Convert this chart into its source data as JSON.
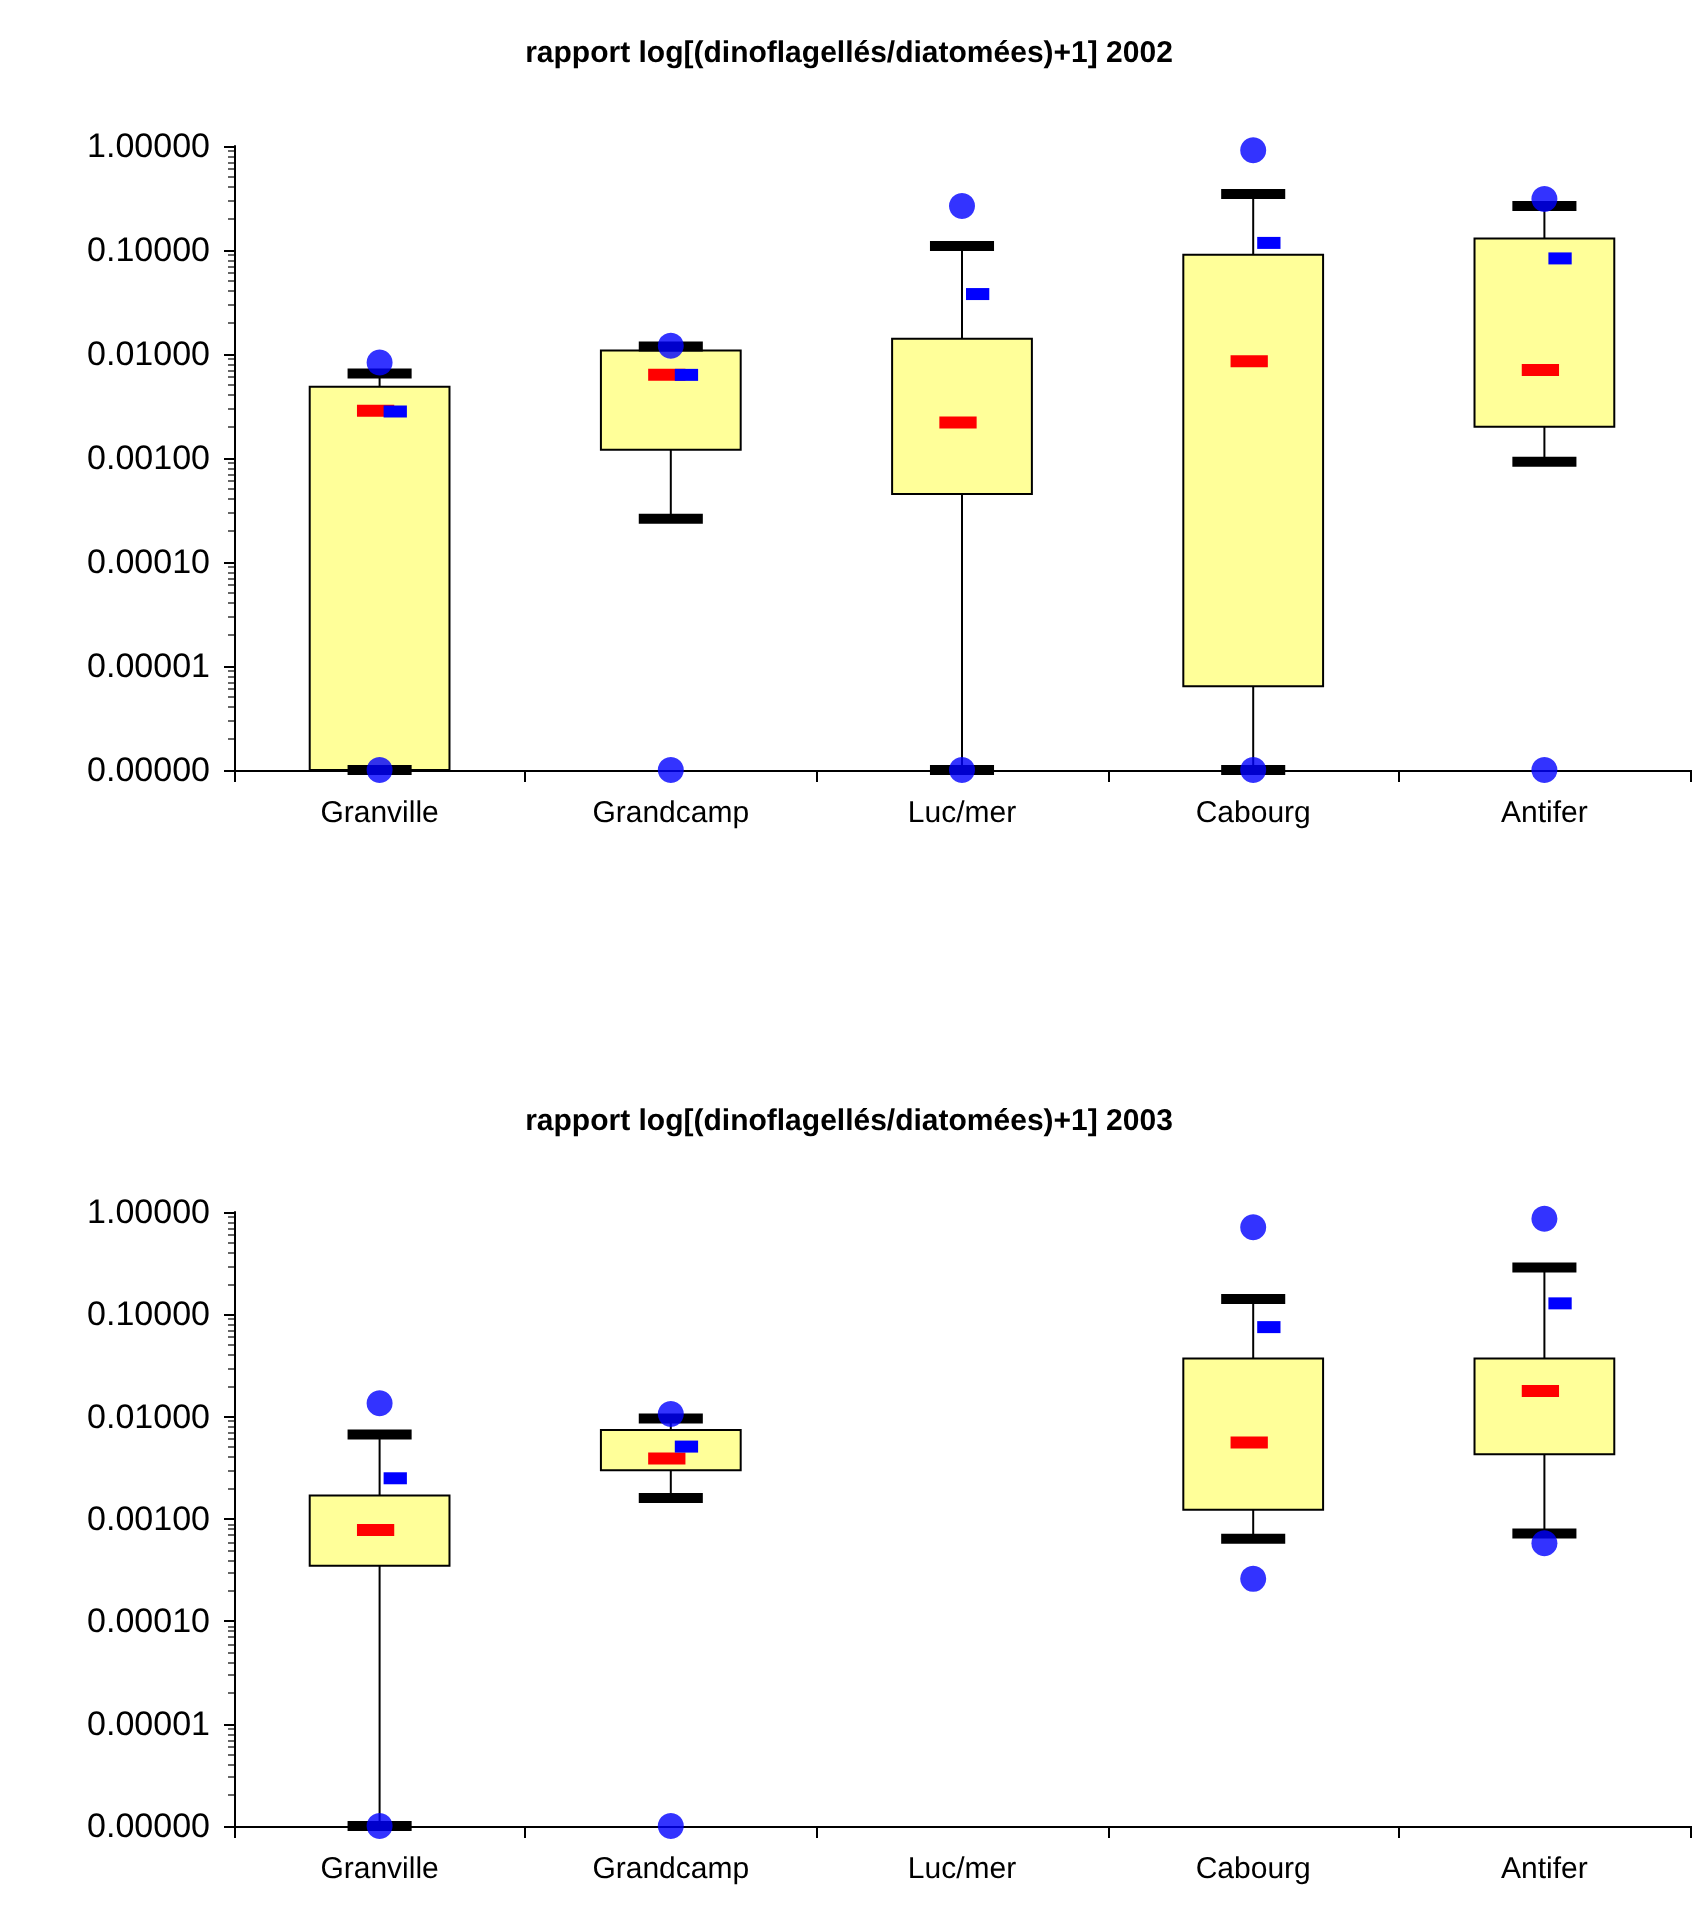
{
  "chart_data": [
    {
      "type": "box",
      "title": "rapport log[(dinoflagellés/diatomées)+1] 2002",
      "categories": [
        "Granville",
        "Grandcamp",
        "Luc/mer",
        "Cabourg",
        "Antifer"
      ],
      "log": "y",
      "grid": false,
      "ylim": [
        1e-06,
        1
      ],
      "yticks": [
        {
          "value": 1e-06,
          "label": "0.00000"
        },
        {
          "value": 1e-05,
          "label": "0.00001"
        },
        {
          "value": 0.0001,
          "label": "0.00010"
        },
        {
          "value": 0.001,
          "label": "0.00100"
        },
        {
          "value": 0.01,
          "label": "0.01000"
        },
        {
          "value": 0.1,
          "label": "0.10000"
        },
        {
          "value": 1,
          "label": "1.00000"
        }
      ],
      "series": [
        {
          "color": "#ffff99",
          "boxes": [
            {
              "low": 1e-06,
              "q1": 1e-06,
              "median": 0.00285,
              "q3": 0.00485,
              "high": 0.0065,
              "mean": 0.0028,
              "outliers": [
                0.0083,
                1e-06
              ]
            },
            {
              "low": 0.00026,
              "q1": 0.0012,
              "median": 0.0063,
              "q3": 0.0108,
              "high": 0.0118,
              "mean": 0.0063,
              "outliers": [
                0.012,
                1e-06
              ]
            },
            {
              "low": 1e-06,
              "q1": 0.00045,
              "median": 0.0022,
              "q3": 0.014,
              "high": 0.109,
              "mean": 0.0377,
              "outliers": [
                0.265,
                1e-06
              ]
            },
            {
              "low": 1e-06,
              "q1": 6.4e-06,
              "median": 0.0085,
              "q3": 0.09,
              "high": 0.345,
              "mean": 0.117,
              "outliers": [
                0.91,
                1e-06
              ]
            },
            {
              "low": 0.00092,
              "q1": 0.002,
              "median": 0.007,
              "q3": 0.129,
              "high": 0.265,
              "mean": 0.083,
              "outliers": [
                0.31,
                1e-06
              ]
            }
          ]
        }
      ]
    },
    {
      "type": "box",
      "title": "rapport log[(dinoflagellés/diatomées)+1] 2003",
      "categories": [
        "Granville",
        "Grandcamp",
        "Luc/mer",
        "Cabourg",
        "Antifer"
      ],
      "log": "y",
      "grid": false,
      "ylim": [
        1e-06,
        1
      ],
      "yticks": [
        {
          "value": 1e-06,
          "label": "0.00000"
        },
        {
          "value": 1e-05,
          "label": "0.00001"
        },
        {
          "value": 0.0001,
          "label": "0.00010"
        },
        {
          "value": 0.001,
          "label": "0.00100"
        },
        {
          "value": 0.01,
          "label": "0.01000"
        },
        {
          "value": 0.1,
          "label": "0.10000"
        },
        {
          "value": 1,
          "label": "1.00000"
        }
      ],
      "series": [
        {
          "color": "#ffff99",
          "boxes": [
            {
              "low": 1e-06,
              "q1": 0.00035,
              "median": 0.00078,
              "q3": 0.0017,
              "high": 0.0067,
              "mean": 0.0025,
              "outliers": [
                0.0135,
                1e-06
              ]
            },
            {
              "low": 0.0016,
              "q1": 0.003,
              "median": 0.0039,
              "q3": 0.0074,
              "high": 0.0096,
              "mean": 0.0051,
              "outliers": [
                0.0106,
                1e-06
              ]
            },
            null,
            {
              "low": 0.00064,
              "q1": 0.00123,
              "median": 0.0056,
              "q3": 0.037,
              "high": 0.141,
              "mean": 0.075,
              "outliers": [
                0.71,
                0.00026
              ]
            },
            {
              "low": 0.00072,
              "q1": 0.0043,
              "median": 0.0178,
              "q3": 0.037,
              "high": 0.287,
              "mean": 0.128,
              "outliers": [
                0.86,
                0.00058
              ]
            }
          ]
        }
      ]
    }
  ]
}
